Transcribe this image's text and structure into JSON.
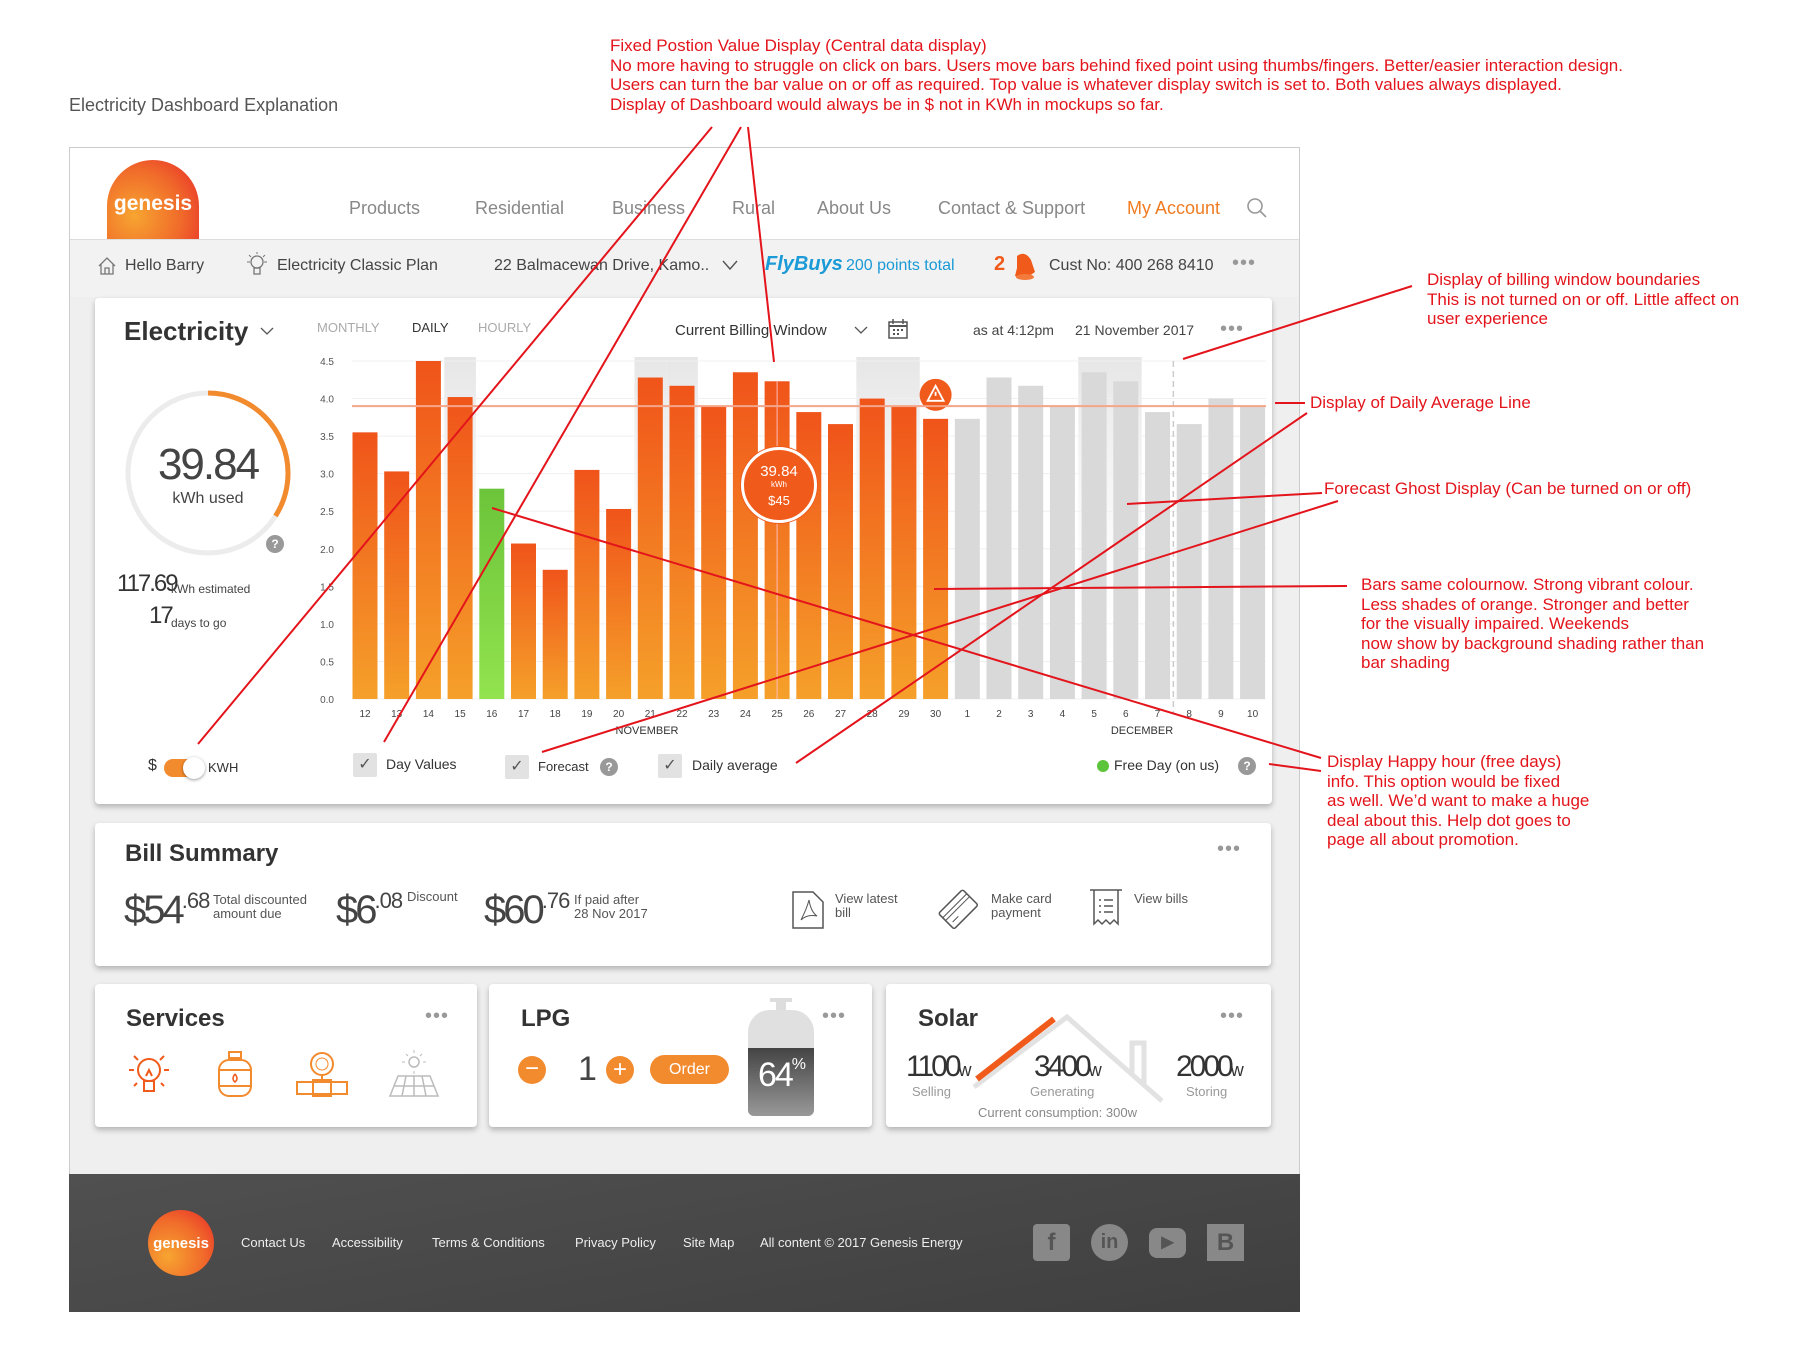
{
  "page_title": "Electricity Dashboard Explanation",
  "header": {
    "logo": "genesis",
    "nav": [
      "Products",
      "Residential",
      "Business",
      "Rural",
      "About Us",
      "Contact & Support",
      "My Account"
    ],
    "search_icon": "search-icon"
  },
  "subbar": {
    "greeting": "Hello Barry",
    "plan": "Electricity Classic Plan",
    "address": "22 Balmacewan Drive, Kamo..",
    "flybuys_logo": "FlyBuys",
    "flybuys_points": "200 points total",
    "notifications": "2",
    "customer_no": "Cust No: 400 268 8410"
  },
  "electricity": {
    "title": "Electricity",
    "tabs": [
      "MONTHLY",
      "DAILY",
      "HOURLY"
    ],
    "active_tab": "DAILY",
    "window_select": "Current Billing Window",
    "as_at": "as at  4:12pm",
    "date": "21 November 2017",
    "gauge_value": "39.84",
    "gauge_unit": "kWh used",
    "gauge_fraction": 0.34,
    "estimated_value": "117.69",
    "estimated_label": "kWh estimated",
    "days_value": "17",
    "days_label": "days to go",
    "toggle_left": "$",
    "toggle_right": "KWH",
    "toggle_state": "KWH",
    "checkboxes": [
      {
        "label": "Day Values",
        "checked": true
      },
      {
        "label": "Forecast",
        "checked": true
      },
      {
        "label": "Daily average",
        "checked": true
      }
    ],
    "free_day_label": "Free Day (on us)",
    "free_day_color": "#5cc43a",
    "tooltip": {
      "value": "39.84",
      "unit": "kWh",
      "cost": "$45"
    }
  },
  "chart_data": {
    "type": "bar",
    "categories": [
      "12",
      "13",
      "14",
      "15",
      "16",
      "17",
      "18",
      "19",
      "20",
      "21",
      "22",
      "23",
      "24",
      "25",
      "26",
      "27",
      "28",
      "29",
      "30",
      "1",
      "2",
      "3",
      "4",
      "5",
      "6",
      "7",
      "8",
      "9",
      "10"
    ],
    "month_labels": [
      "NOVEMBER",
      "DECEMBER"
    ],
    "values": [
      3.55,
      3.03,
      4.5,
      4.02,
      2.8,
      2.07,
      1.72,
      3.05,
      2.53,
      4.28,
      4.17,
      3.9,
      4.35,
      4.23,
      3.82,
      3.66,
      4.0,
      3.9,
      3.73,
      3.73,
      4.28,
      4.17,
      3.9,
      4.35,
      4.23,
      3.82,
      3.66,
      4.0,
      3.9
    ],
    "bar_kind": [
      "actual",
      "actual",
      "actual",
      "actual",
      "free",
      "actual",
      "actual",
      "actual",
      "actual",
      "actual",
      "actual",
      "actual",
      "actual",
      "actual",
      "actual",
      "actual",
      "actual",
      "actual",
      "actual",
      "forecast",
      "forecast",
      "forecast",
      "forecast",
      "forecast",
      "forecast",
      "forecast",
      "forecast",
      "forecast",
      "forecast"
    ],
    "shaded_days": [
      "15",
      "21",
      "22",
      "28",
      "29",
      "5",
      "6"
    ],
    "daily_average": 3.9,
    "billing_boundary_after": "7",
    "warning_on": "30",
    "selected": "25",
    "yticks": [
      "0.0",
      "0.5",
      "1.0",
      "1.5",
      "2.0",
      "2.5",
      "3.0",
      "3.5",
      "4.0",
      "4.5"
    ],
    "ylim": [
      0,
      4.5
    ],
    "colors": {
      "actual_top": "#f0541a",
      "actual_bottom": "#f5a02a",
      "free_top": "#6cc43a",
      "free_bottom": "#92e34e",
      "forecast": "#d9d9d9",
      "average": "#f4a58a"
    },
    "grid": true
  },
  "bill": {
    "title": "Bill Summary",
    "amount1": {
      "dollars": "$54",
      "cents": ".68",
      "label1": "Total discounted",
      "label2": "amount due"
    },
    "amount2": {
      "dollars": "$6",
      "cents": ".08",
      "label1": "Discount"
    },
    "amount3": {
      "dollars": "$60",
      "cents": ".76",
      "label1": "If paid after",
      "label2": "28 Nov 2017"
    },
    "actions": [
      {
        "l1": "View latest",
        "l2": "bill"
      },
      {
        "l1": "Make card",
        "l2": "payment"
      },
      {
        "l1": "View bills",
        "l2": ""
      }
    ]
  },
  "services": {
    "title": "Services"
  },
  "lpg": {
    "title": "LPG",
    "quantity": "1",
    "order": "Order",
    "level": "64",
    "level_unit": "%",
    "level_fraction": 0.64
  },
  "solar": {
    "title": "Solar",
    "selling": "1100",
    "selling_label": "Selling",
    "generating": "3400",
    "generating_label": "Generating",
    "storing": "2000",
    "storing_label": "Storing",
    "unit": "w",
    "consumption": "Current consumption: 300w"
  },
  "footer": {
    "logo": "genesis",
    "links": [
      "Contact Us",
      "Accessibility",
      "Terms & Conditions",
      "Privacy Policy",
      "Site Map"
    ],
    "copyright": "All content  © 2017 Genesis Energy",
    "social": [
      "facebook-icon",
      "linkedin-icon",
      "youtube-icon",
      "blogger-icon"
    ]
  },
  "annotations": {
    "fixed_position": [
      "Fixed Postion Value Display (Central data display)",
      "No more having to struggle on click on bars. Users move bars behind fixed point using thumbs/fingers. Better/easier interaction design.",
      "Users can turn the bar value on or off as required.  Top value is whatever display switch is set to. Both values always displayed.",
      "Display of Dashboard would always be in $ not in KWh in mockups so far."
    ],
    "billing_window": [
      "Display of billing window boundaries",
      "This is not turned on or off. Little affect on",
      "user experience"
    ],
    "daily_average": [
      "Display of Daily Average Line"
    ],
    "forecast": [
      "Forecast Ghost Display (Can be turned on or off)"
    ],
    "bars": [
      "Bars same colournow. Strong vibrant colour.",
      "Less shades of orange. Stronger and better",
      "for the visually impaired. Weekends",
      "now show by background shading rather than",
      "bar shading"
    ],
    "happy_hour": [
      "Display Happy hour (free days)",
      "info. This option would be fixed",
      "as well. We’d want to make a huge",
      "deal about this. Help dot goes to",
      "page all about promotion."
    ]
  }
}
